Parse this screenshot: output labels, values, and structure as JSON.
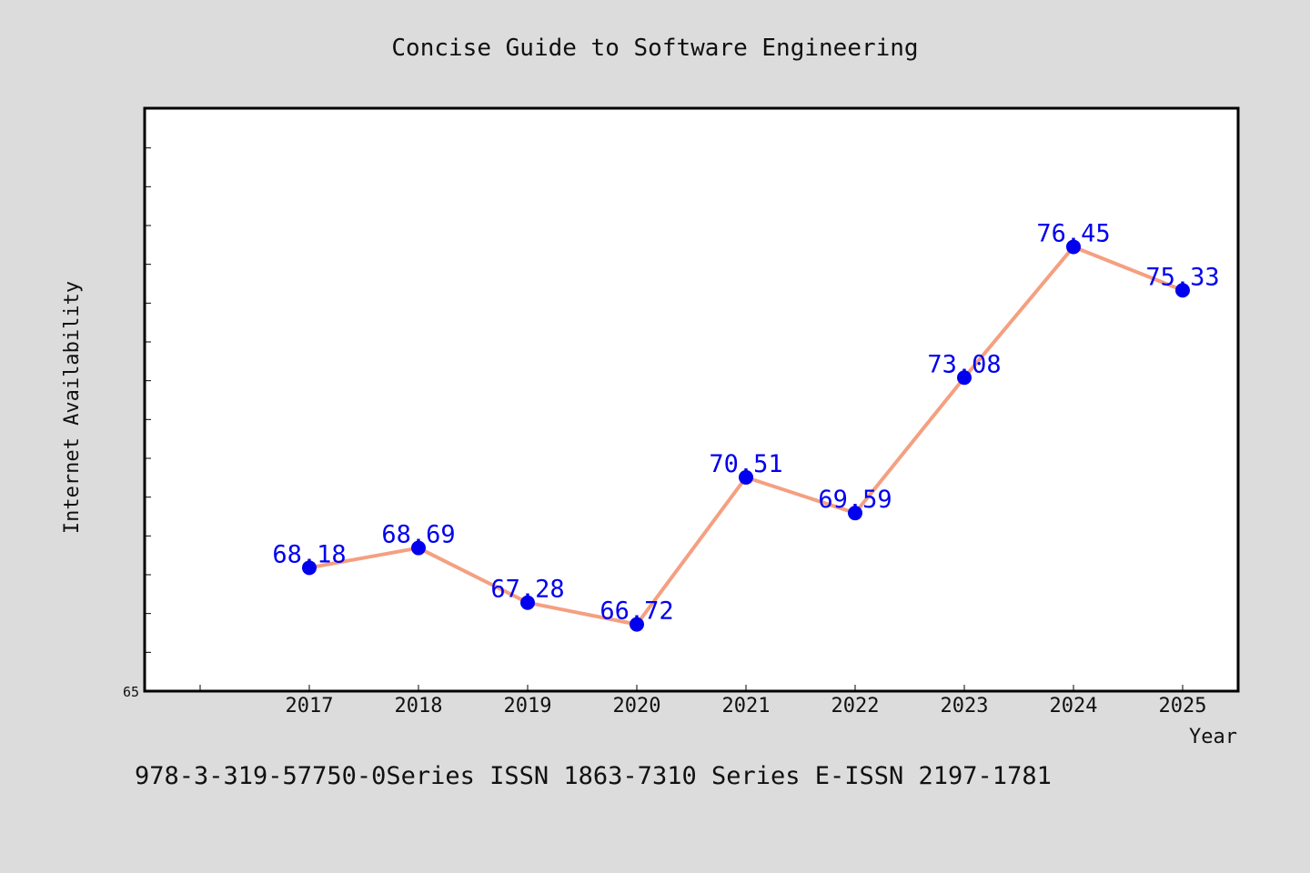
{
  "chart_data": {
    "type": "line",
    "title": "Concise Guide to Software Engineering",
    "xlabel": "Year",
    "ylabel": "Internet Availability",
    "categories": [
      "2017",
      "2018",
      "2019",
      "2020",
      "2021",
      "2022",
      "2023",
      "2024",
      "2025"
    ],
    "values": [
      68.18,
      68.69,
      67.28,
      66.72,
      70.51,
      69.59,
      73.08,
      76.45,
      75.33
    ],
    "data_labels": [
      "68.18",
      "68.69",
      "67.28",
      "66.72",
      "70.51",
      "69.59",
      "73.08",
      "76.45",
      "75.33"
    ],
    "ylim": [
      65,
      80
    ],
    "y_tick_label": "65",
    "grid": false,
    "legend": "none",
    "line_color": "#f4a081",
    "marker_color": "#0000ee",
    "label_color": "#0000ee",
    "footnote": "978-3-319-57750-0Series ISSN 1863-7310 Series E-ISSN 2197-1781"
  }
}
